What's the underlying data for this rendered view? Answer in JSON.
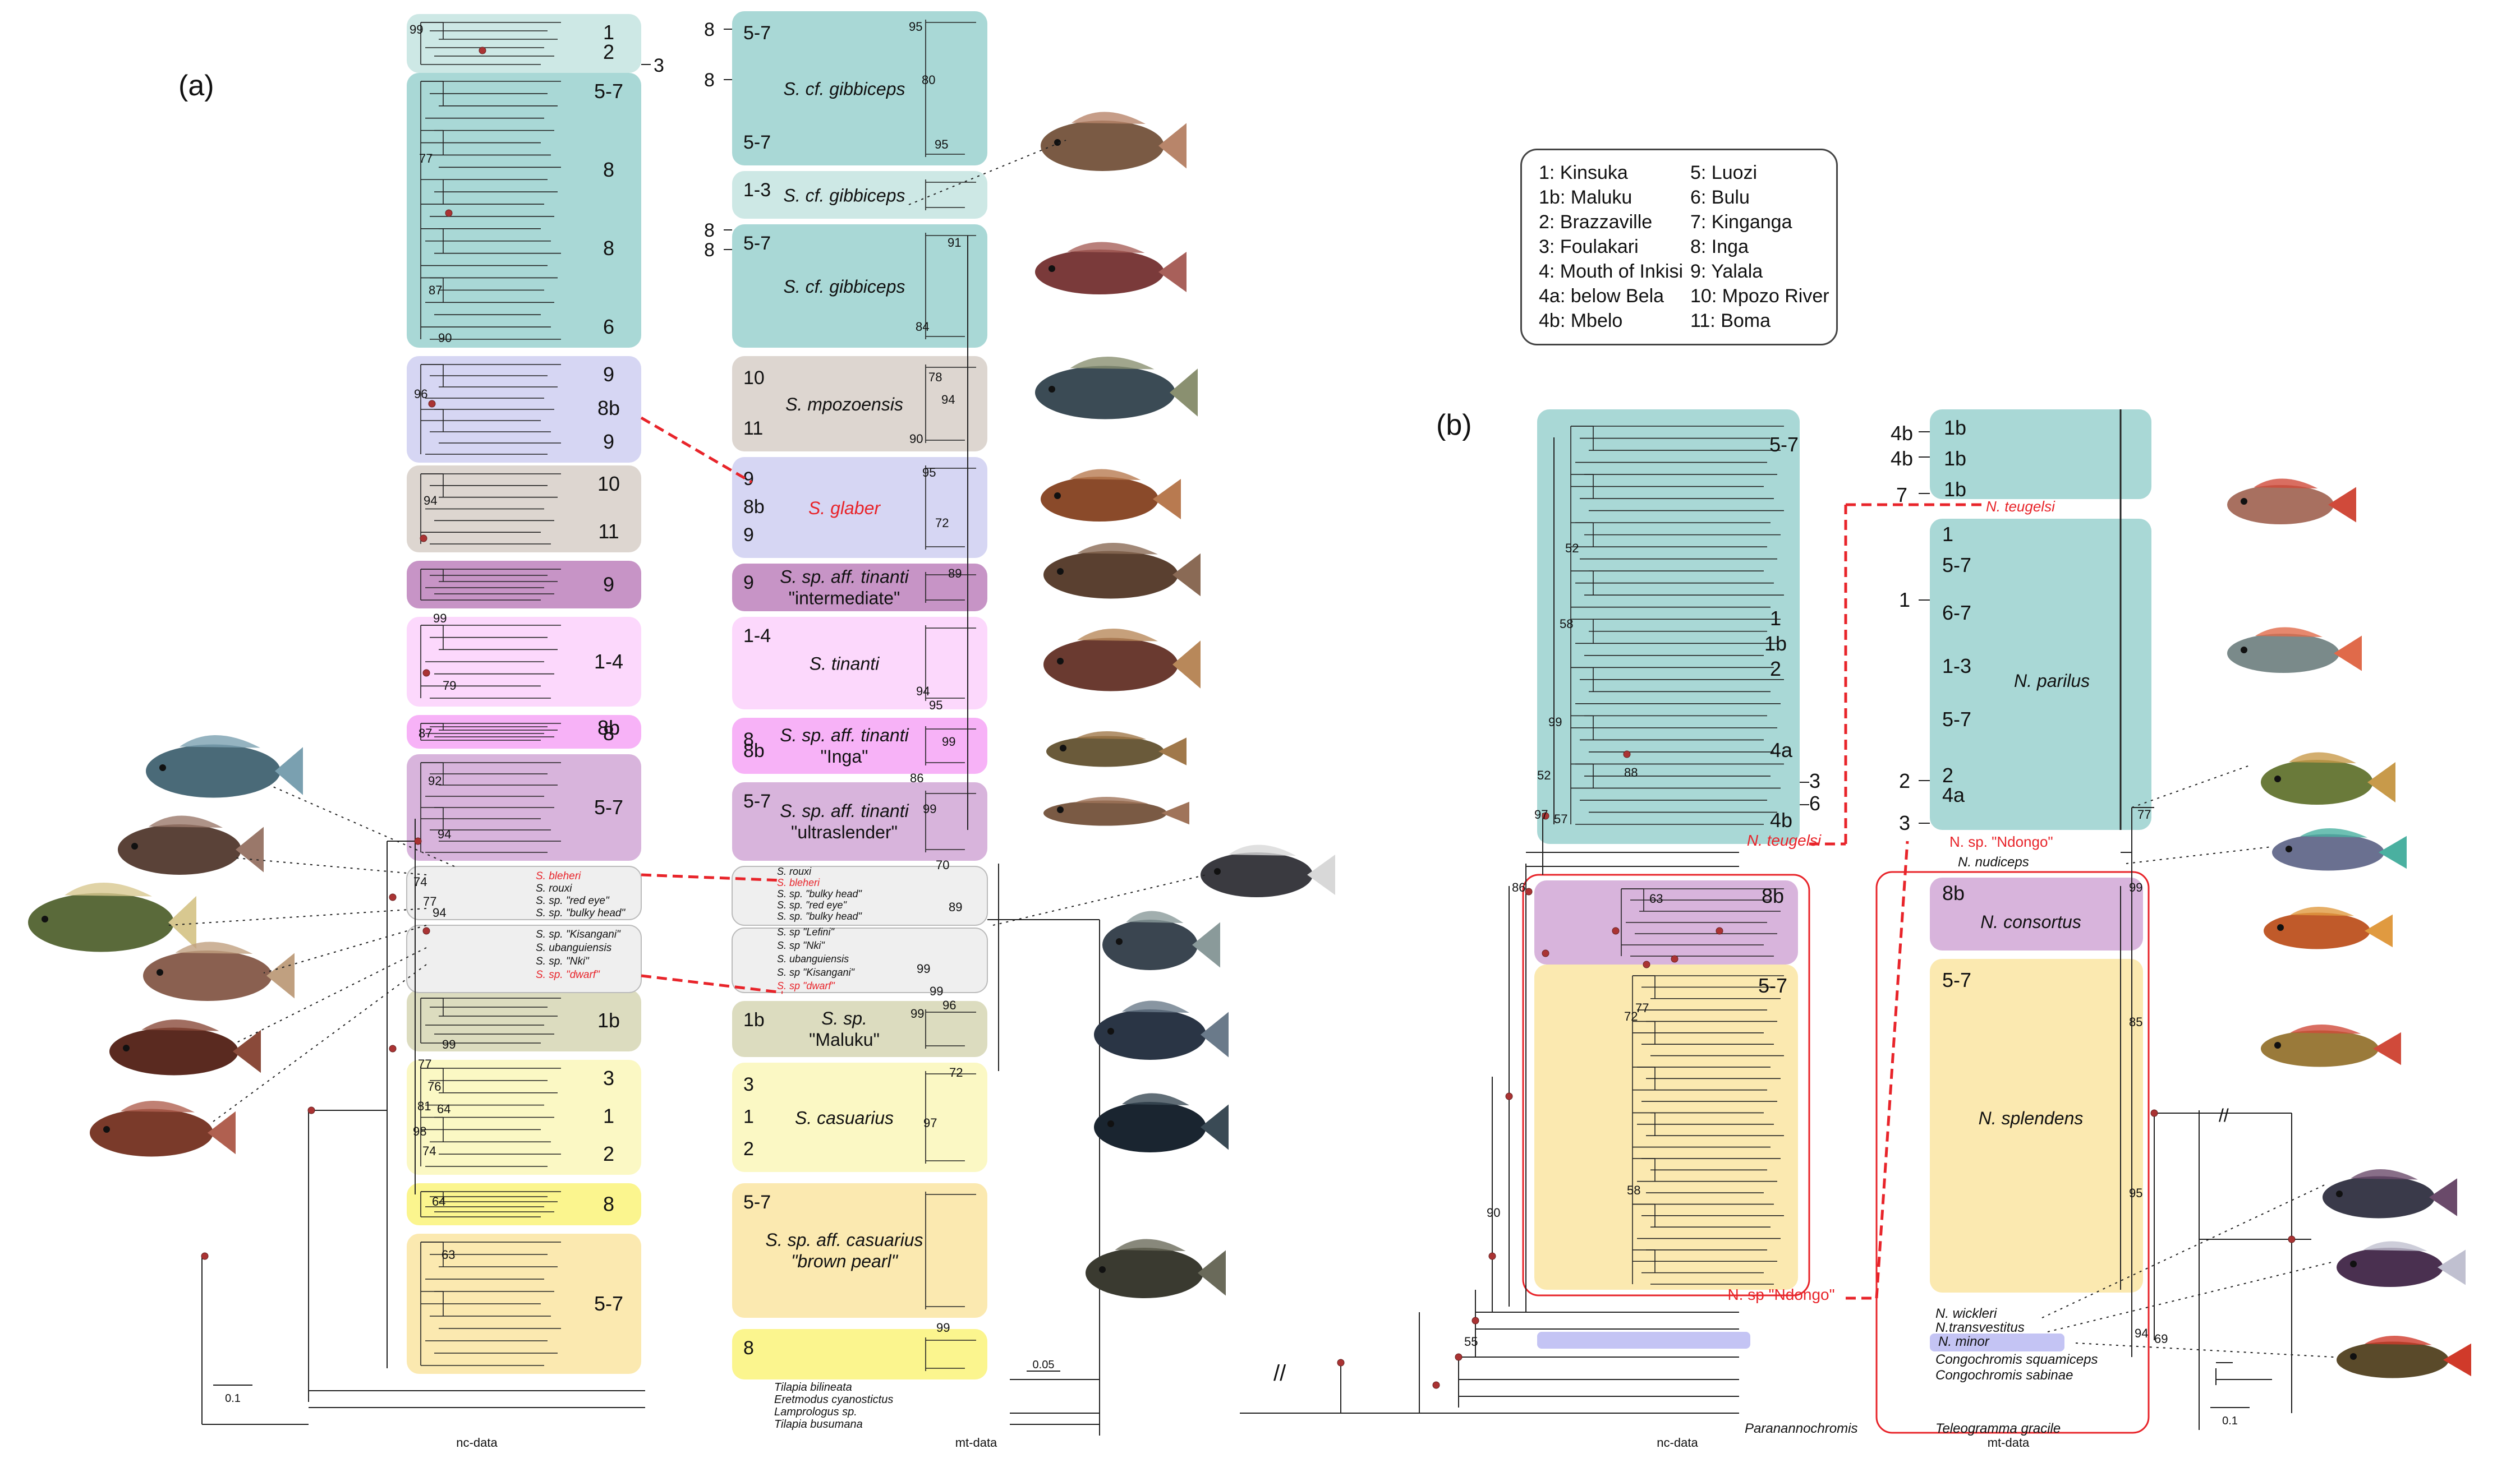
{
  "panel_a": {
    "label": "(a)",
    "nc_label": "nc-data",
    "mt_label": "mt-data",
    "scale_nc": "0.1",
    "scale_mt": "0.05",
    "nc_clades": [
      {
        "labels": [
          "1",
          "2"
        ],
        "color": "#cde8e5"
      },
      {
        "labels": [
          "5-7",
          "8",
          "8",
          "6"
        ],
        "color": "#a9d8d6"
      },
      {
        "labels": [
          "9",
          "8b",
          "9"
        ],
        "color": "#d6d6f3"
      },
      {
        "labels": [
          "10",
          "11"
        ],
        "color": "#ddd6d0"
      },
      {
        "labels": [
          "9"
        ],
        "color": "#c794c6"
      },
      {
        "labels": [
          "1-4"
        ],
        "color": "#fcd8fc"
      },
      {
        "labels": [
          "8",
          "8b"
        ],
        "color": "#f7b2f7"
      },
      {
        "labels": [
          "5-7"
        ],
        "color": "#d8b4dc"
      },
      {
        "labels": [
          "1b"
        ],
        "color": "#dcdcbf"
      },
      {
        "labels": [
          "3",
          "1",
          "2"
        ],
        "color": "#fbf8c4"
      },
      {
        "labels": [
          "8"
        ],
        "color": "#fbf58e"
      },
      {
        "labels": [
          "5-7"
        ],
        "color": "#fbe9b0"
      }
    ],
    "nc_side_label": "3",
    "mt_clades": [
      {
        "labels": [
          "5-7",
          "5-7"
        ],
        "name": "S. cf. gibbiceps",
        "color": "#a9d8d6"
      },
      {
        "labels": [
          "1-3"
        ],
        "name": "S. cf. gibbiceps",
        "color": "#cde8e5"
      },
      {
        "labels": [
          "5-7"
        ],
        "name": "S. cf. gibbiceps",
        "color": "#a9d8d6"
      },
      {
        "labels": [
          "10",
          "11"
        ],
        "name": "S. mpozoensis",
        "color": "#ddd6d0"
      },
      {
        "labels": [
          "9",
          "8b",
          "9"
        ],
        "name": "S. glaber",
        "color": "#d6d6f3"
      },
      {
        "labels": [
          "9"
        ],
        "name": "S. sp. aff. tinanti \"intermediate\"",
        "color": "#c794c6"
      },
      {
        "labels": [
          "1-4"
        ],
        "name": "S. tinanti",
        "color": "#fcd8fc"
      },
      {
        "labels": [
          "8",
          "8b"
        ],
        "name": "S. sp. aff. tinanti \"Inga\"",
        "color": "#f7b2f7"
      },
      {
        "labels": [
          "5-7"
        ],
        "name": "S. sp. aff. tinanti \"ultraslender\"",
        "color": "#d8b4dc"
      },
      {
        "labels": [
          "1b"
        ],
        "name": "S. sp. \"Maluku\"",
        "color": "#dcdcbf"
      },
      {
        "labels": [
          "3",
          "1",
          "2"
        ],
        "name": "S. casuarius",
        "color": "#fbf8c4"
      },
      {
        "labels": [
          "5-7"
        ],
        "name": "S. sp. aff. casuarius \"brown pearl\"",
        "color": "#fbe9b0"
      },
      {
        "labels": [
          "8"
        ],
        "name": "",
        "color": "#fbf58e"
      }
    ],
    "mt_left_tick_labels": [
      "8",
      "8",
      "8",
      "8"
    ],
    "nc_grey_taxa_top": [
      "S. bleheri",
      "S. rouxi",
      "S. sp. \"red eye\"",
      "S. sp. \"bulky head\""
    ],
    "nc_grey_taxa_bottom": [
      "S. sp. \"Kisangani\"",
      "S. ubanguiensis",
      "S. sp. \"Nki\"",
      "S. sp. \"dwarf\""
    ],
    "mt_grey_taxa_top": [
      "S. rouxi",
      "S. bleheri",
      "S. sp. \"bulky head\"",
      "S. sp. \"red eye\"",
      "S. sp. \"bulky head\""
    ],
    "mt_grey_taxa_bottom": [
      "S. sp \"Lefini\"",
      "S. sp \"Nki\"",
      "S. ubanguiensis",
      "S. sp \"Kisangani\"",
      "S. sp \"dwarf\""
    ],
    "outgroups": [
      "Tilapia bilineata",
      "Eretmodus cyanostictus",
      "Lamprologus sp.",
      "Tilapia busumana"
    ],
    "nc_support": [
      "99",
      "77",
      "87",
      "90",
      "96",
      "94",
      "99",
      "79",
      "87",
      "92",
      "94",
      "74",
      "77",
      "94",
      "99",
      "77",
      "76",
      "64",
      "98",
      "74",
      "64",
      "63",
      "81"
    ],
    "mt_support": [
      "95",
      "80",
      "95",
      "91",
      "84",
      "78",
      "94",
      "90",
      "95",
      "72",
      "89",
      "94",
      "95",
      "99",
      "86",
      "99",
      "70",
      "89",
      "99",
      "99",
      "96",
      "99",
      "97",
      "99",
      "72"
    ],
    "highlight_color": "#e8242a"
  },
  "legend": {
    "col1": [
      "1: Kinsuka",
      "1b: Maluku",
      "2: Brazzaville",
      "3: Foulakari",
      "4: Mouth of Inkisi",
      "4a: below Bela",
      "4b: Mbelo"
    ],
    "col2": [
      "5: Luozi",
      "6: Bulu",
      "7: Kinganga",
      "8: Inga",
      "9: Yalala",
      "10: Mpozo River",
      "11: Boma"
    ]
  },
  "panel_b": {
    "label": "(b)",
    "nc_label": "nc-data",
    "mt_label": "mt-data",
    "scale": "0.1",
    "nc_clades": [
      {
        "labels": [
          "5-7",
          "1",
          "1b",
          "2",
          "4a",
          "3",
          "6",
          "4b"
        ],
        "color": "#a9d8d6"
      },
      {
        "labels": [
          "8b"
        ],
        "color": "#d8b4dc"
      },
      {
        "labels": [
          "5-7"
        ],
        "color": "#fbe9b0"
      }
    ],
    "mt_clades": [
      {
        "labels": [
          "1b",
          "1b",
          "1b"
        ],
        "left": [
          "4b",
          "4b"
        ],
        "name": "",
        "color": "#a9d8d6"
      },
      {
        "labels": [
          "1",
          "5-7",
          "6-7",
          "1-3",
          "5-7",
          "2",
          "4a"
        ],
        "left": [
          "1",
          "2",
          "3"
        ],
        "name": "N. parilus",
        "color": "#a9d8d6"
      },
      {
        "labels": [
          "8b"
        ],
        "name": "N. consortus",
        "color": "#d8b4dc"
      },
      {
        "labels": [
          "5-7"
        ],
        "name": "N. splendens",
        "color": "#fbe9b0"
      }
    ],
    "left_tick_7": "7",
    "red_taxa": [
      "N. teugelsi",
      "N. teugelsi",
      "N. sp. \"Ndongo\"",
      "N. sp \"Ndongo\""
    ],
    "mt_taxa": [
      "N. nudiceps",
      "N. wickleri",
      "N.transvestitus",
      "N. minor",
      "Congochromis squamiceps",
      "Congochromis sabinae",
      "Teleogramma gracile"
    ],
    "nc_outgroup": "Paranannochromis",
    "nc_support": [
      "52",
      "58",
      "99",
      "88",
      "52",
      "57",
      "97",
      "86",
      "63",
      "72",
      "77",
      "58",
      "90",
      "55"
    ],
    "mt_support": [
      "77",
      "99",
      "85",
      "95",
      "94",
      "69"
    ],
    "highlight_color": "#e8242a"
  }
}
